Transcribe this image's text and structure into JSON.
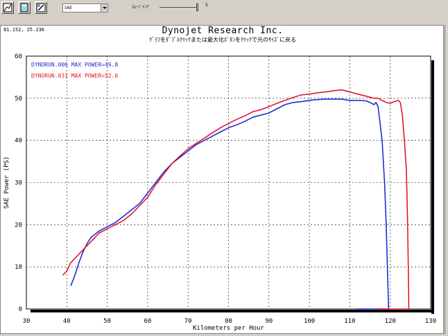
{
  "toolbar": {
    "buttons": [
      "graph-zoom-icon",
      "copy-icon",
      "settings-icon"
    ],
    "correction_select": "SAE",
    "smoothing_label": "ｽﾑｰｼﾞｲﾝｸﾞ",
    "smoothing_value": "5",
    "smoothing_level": 1.0
  },
  "header": {
    "cursor_readout": "81.152, 25.236",
    "title": "Dynojet  Research  Inc.",
    "subtitle": "ｸﾞﾗﾌをﾀﾞﾌﾞﾙｸﾘｯｸまたは最大化ﾎﾞﾀﾝをｸﾘｯｸで元のｻｲｽﾞに戻る"
  },
  "chart_data": {
    "type": "line",
    "title": "",
    "xlabel": "Kilometers per Hour",
    "ylabel": "SAE Power (PS)",
    "xlim": [
      30,
      130
    ],
    "ylim": [
      0,
      60
    ],
    "x_ticks": [
      "30",
      "40",
      "50",
      "60",
      "70",
      "80",
      "90",
      "100",
      "110",
      "120",
      "130"
    ],
    "y_ticks": [
      "0",
      "10",
      "20",
      "30",
      "40",
      "50",
      "60"
    ],
    "grid": true,
    "legend_position": "top-left",
    "series": [
      {
        "name": "DYNORUN.006  MAX POWER=49.8",
        "color": "#1f2bd6",
        "points": [
          [
            41,
            5.5
          ],
          [
            42,
            8
          ],
          [
            43,
            11
          ],
          [
            44,
            13.5
          ],
          [
            45,
            15.5
          ],
          [
            46,
            17
          ],
          [
            48,
            18.5
          ],
          [
            50,
            19.5
          ],
          [
            52,
            20.5
          ],
          [
            54,
            22
          ],
          [
            56,
            23.5
          ],
          [
            58,
            25
          ],
          [
            60,
            27.5
          ],
          [
            62,
            30
          ],
          [
            64,
            32.5
          ],
          [
            66,
            34.5
          ],
          [
            68,
            36
          ],
          [
            70,
            37.5
          ],
          [
            72,
            39
          ],
          [
            74,
            40
          ],
          [
            76,
            41
          ],
          [
            78,
            42
          ],
          [
            80,
            43
          ],
          [
            82,
            43.7
          ],
          [
            84,
            44.5
          ],
          [
            86,
            45.5
          ],
          [
            88,
            46
          ],
          [
            90,
            46.5
          ],
          [
            92,
            47.5
          ],
          [
            94,
            48.5
          ],
          [
            96,
            49
          ],
          [
            98,
            49.2
          ],
          [
            100,
            49.5
          ],
          [
            102,
            49.7
          ],
          [
            104,
            49.8
          ],
          [
            106,
            49.8
          ],
          [
            108,
            49.8
          ],
          [
            110,
            49.5
          ],
          [
            112,
            49.5
          ],
          [
            114,
            49.4
          ],
          [
            115,
            49
          ],
          [
            116,
            48.5
          ],
          [
            116.5,
            49
          ],
          [
            117,
            48
          ],
          [
            118,
            40
          ],
          [
            118.6,
            30
          ],
          [
            119,
            20
          ],
          [
            119.3,
            10
          ],
          [
            119.5,
            3
          ],
          [
            119.6,
            0
          ]
        ]
      },
      {
        "name": "DYNORUN.031  MAX POWER=52.0",
        "color": "#e0182e",
        "points": [
          [
            39,
            8
          ],
          [
            40,
            9
          ],
          [
            41,
            11
          ],
          [
            42,
            12
          ],
          [
            44,
            14
          ],
          [
            46,
            16
          ],
          [
            48,
            18
          ],
          [
            50,
            19
          ],
          [
            52,
            20
          ],
          [
            54,
            21
          ],
          [
            56,
            22.5
          ],
          [
            58,
            24.5
          ],
          [
            60,
            26.5
          ],
          [
            62,
            29.5
          ],
          [
            64,
            32
          ],
          [
            66,
            34.5
          ],
          [
            68,
            36.3
          ],
          [
            70,
            38
          ],
          [
            72,
            39.3
          ],
          [
            74,
            40.5
          ],
          [
            76,
            41.8
          ],
          [
            78,
            43
          ],
          [
            80,
            44
          ],
          [
            82,
            45
          ],
          [
            84,
            45.8
          ],
          [
            86,
            46.8
          ],
          [
            88,
            47.3
          ],
          [
            90,
            48
          ],
          [
            92,
            48.8
          ],
          [
            94,
            49.5
          ],
          [
            96,
            50.2
          ],
          [
            98,
            50.8
          ],
          [
            100,
            51
          ],
          [
            102,
            51.3
          ],
          [
            104,
            51.5
          ],
          [
            106,
            51.8
          ],
          [
            108,
            52
          ],
          [
            110,
            51.5
          ],
          [
            112,
            51
          ],
          [
            114,
            50.5
          ],
          [
            116,
            50
          ],
          [
            117,
            50
          ],
          [
            118,
            49.5
          ],
          [
            119,
            49
          ],
          [
            120,
            48.8
          ],
          [
            121,
            49.2
          ],
          [
            122,
            49.5
          ],
          [
            122.5,
            49
          ],
          [
            123,
            46
          ],
          [
            123.5,
            40
          ],
          [
            124,
            33
          ],
          [
            124.3,
            20
          ],
          [
            124.5,
            8
          ],
          [
            124.6,
            0
          ]
        ]
      }
    ]
  }
}
